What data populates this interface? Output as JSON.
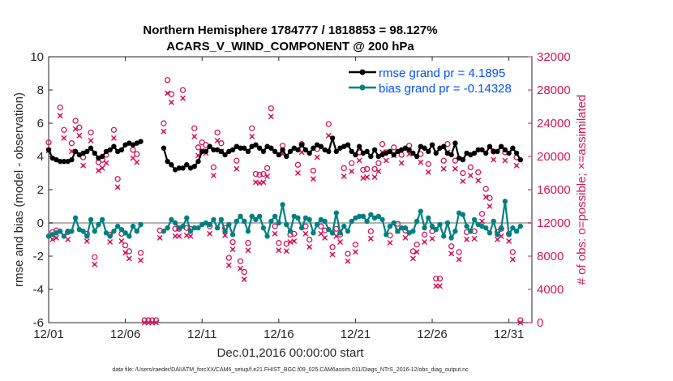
{
  "chart_data": {
    "type": "line",
    "title_line1": "Northern Hemisphere 1784777 / 1818853 = 98.127%",
    "title_line2": "ACARS_V_WIND_COMPONENT @ 200 hPa",
    "xlabel": "Dec.01,2016 00:00:00 start",
    "ylabel_left": "rmse and bias (model - observation)",
    "ylabel_right": "# of obs: o=possible; ×=assimilated",
    "footer": "data file: /Users/raeder/DAI/ATM_forcXX/CAM6_setup/f.e21.FHIST_BGC.f09_025.CAM6assim.011/Diags_NTrS_2016-12/obs_diag_output.nc",
    "xlim": [
      1,
      32.5
    ],
    "ylim_left": [
      -6,
      10
    ],
    "ylim_right": [
      0,
      32000
    ],
    "x_ticks": [
      {
        "value": 1,
        "label": "12/01"
      },
      {
        "value": 6,
        "label": "12/06"
      },
      {
        "value": 11,
        "label": "12/11"
      },
      {
        "value": 16,
        "label": "12/16"
      },
      {
        "value": 21,
        "label": "12/21"
      },
      {
        "value": 26,
        "label": "12/26"
      },
      {
        "value": 31,
        "label": "12/31"
      }
    ],
    "y_ticks_left": [
      "-6",
      "-4",
      "-2",
      "0",
      "2",
      "4",
      "6",
      "8",
      "10"
    ],
    "y_ticks_right": [
      "0",
      "4000",
      "8000",
      "12000",
      "16000",
      "20000",
      "24000",
      "28000",
      "32000"
    ],
    "legend": {
      "rmse_label": "rmse grand pr = 4.1895",
      "bias_label": "bias grand pr = -0.14328"
    },
    "colors": {
      "rmse": "#000000",
      "bias": "#008080",
      "obs": "#d6155b",
      "zero_line": "#b3b3b3",
      "legend_text": "#0050ff"
    },
    "x": [
      1.0,
      1.25,
      1.5,
      1.75,
      2.0,
      2.25,
      2.5,
      2.75,
      3.0,
      3.25,
      3.5,
      3.75,
      4.0,
      4.25,
      4.5,
      4.75,
      5.0,
      5.25,
      5.5,
      5.75,
      6.0,
      6.25,
      6.5,
      6.75,
      7.0,
      7.25,
      7.5,
      7.75,
      8.0,
      8.25,
      8.5,
      8.75,
      9.0,
      9.25,
      9.5,
      9.75,
      10.0,
      10.25,
      10.5,
      10.75,
      11.0,
      11.25,
      11.5,
      11.75,
      12.0,
      12.25,
      12.5,
      12.75,
      13.0,
      13.25,
      13.5,
      13.75,
      14.0,
      14.25,
      14.5,
      14.75,
      15.0,
      15.25,
      15.5,
      15.75,
      16.0,
      16.25,
      16.5,
      16.75,
      17.0,
      17.25,
      17.5,
      17.75,
      18.0,
      18.25,
      18.5,
      18.75,
      19.0,
      19.25,
      19.5,
      19.75,
      20.0,
      20.25,
      20.5,
      20.75,
      21.0,
      21.25,
      21.5,
      21.75,
      22.0,
      22.25,
      22.5,
      22.75,
      23.0,
      23.25,
      23.5,
      23.75,
      24.0,
      24.25,
      24.5,
      24.75,
      25.0,
      25.25,
      25.5,
      25.75,
      26.0,
      26.25,
      26.5,
      26.75,
      27.0,
      27.25,
      27.5,
      27.75,
      28.0,
      28.25,
      28.5,
      28.75,
      29.0,
      29.25,
      29.5,
      29.75,
      30.0,
      30.25,
      30.5,
      30.75,
      31.0,
      31.25,
      31.5,
      31.75
    ],
    "series": [
      {
        "name": "rmse",
        "values": [
          4.4,
          3.9,
          3.8,
          3.7,
          3.7,
          3.7,
          3.8,
          4.3,
          4.1,
          4.2,
          4.3,
          4.5,
          4.2,
          3.9,
          4.0,
          4.3,
          4.4,
          4.6,
          4.3,
          4.4,
          4.7,
          4.8,
          4.7,
          4.8,
          4.9,
          null,
          null,
          null,
          null,
          null,
          4.5,
          3.7,
          3.5,
          3.2,
          3.3,
          3.3,
          3.5,
          3.3,
          3.4,
          3.7,
          4.3,
          4.3,
          4.6,
          4.4,
          4.4,
          4.3,
          4.1,
          4.3,
          4.4,
          4.6,
          4.5,
          4.5,
          4.3,
          4.6,
          4.7,
          4.5,
          4.3,
          4.6,
          4.5,
          4.3,
          4.1,
          4.4,
          4.0,
          4.3,
          4.5,
          4.4,
          4.7,
          4.4,
          4.2,
          4.5,
          4.7,
          4.6,
          4.4,
          4.3,
          5.1,
          4.3,
          4.5,
          4.6,
          4.7,
          4.3,
          4.1,
          4.6,
          4.2,
          4.3,
          4.0,
          4.4,
          4.0,
          4.1,
          4.2,
          4.3,
          4.1,
          4.3,
          4.4,
          4.5,
          4.4,
          4.2,
          4.0,
          4.6,
          4.5,
          4.3,
          4.7,
          4.2,
          4.5,
          4.6,
          4.2,
          4.1,
          4.8,
          3.9,
          3.8,
          4.2,
          4.1,
          4.2,
          4.4,
          4.4,
          4.2,
          4.6,
          4.3,
          4.3,
          4.6,
          4.4,
          4.2,
          4.5,
          4.2,
          3.8
        ]
      },
      {
        "name": "bias",
        "values": [
          -0.8,
          -0.7,
          -0.6,
          -0.5,
          -0.8,
          -0.5,
          -0.5,
          0.3,
          -0.4,
          -0.5,
          -0.8,
          0.2,
          -0.5,
          -0.1,
          0.2,
          -0.6,
          -0.8,
          -0.5,
          -0.2,
          -0.4,
          -0.6,
          -0.8,
          -0.2,
          -0.5,
          -0.1,
          null,
          null,
          null,
          null,
          null,
          -0.5,
          -0.3,
          0.2,
          0.0,
          -0.3,
          -0.2,
          0.3,
          -0.5,
          -0.3,
          -0.3,
          -0.1,
          0.0,
          -0.1,
          0.2,
          -0.3,
          0.2,
          -0.5,
          -0.1,
          -0.7,
          0.1,
          0.4,
          0.1,
          -0.5,
          0.4,
          0.2,
          0.4,
          -0.3,
          -0.8,
          0.1,
          0.4,
          0.0,
          1.1,
          -0.1,
          -0.5,
          0.4,
          0.3,
          -0.3,
          0.3,
          0.2,
          -0.6,
          -0.1,
          0.2,
          0.1,
          -0.4,
          -0.6,
          0.6,
          -0.6,
          -0.2,
          -0.5,
          0.1,
          0.3,
          0.4,
          0.4,
          0.1,
          0.5,
          0.3,
          0.4,
          0.2,
          -0.7,
          -0.2,
          0.0,
          -0.5,
          -0.3,
          -0.3,
          -0.6,
          -0.5,
          0.1,
          0.7,
          -0.3,
          0.3,
          -0.2,
          -0.4,
          -0.1,
          -0.8,
          0.0,
          -0.9,
          -0.5,
          0.6,
          0.5,
          -0.2,
          -0.5,
          0.2,
          -0.1,
          -0.2,
          -0.3,
          -0.6,
          0.1,
          -0.7,
          -0.3,
          1.3,
          -0.7,
          -0.3,
          -0.5,
          -0.2
        ]
      },
      {
        "name": "obs_possible",
        "values": [
          21400,
          10600,
          10800,
          25600,
          22900,
          10600,
          21300,
          24000,
          23200,
          19600,
          10400,
          22600,
          7600,
          19000,
          19300,
          19900,
          10300,
          22900,
          17000,
          10400,
          9000,
          8300,
          20500,
          20000,
          8100,
          0,
          0,
          0,
          0,
          10800,
          23700,
          28900,
          27200,
          11000,
          11000,
          27700,
          11100,
          11000,
          23100,
          20800,
          21400,
          21100,
          11300,
          18400,
          22600,
          21300,
          11100,
          7500,
          9400,
          19200,
          7100,
          5800,
          9300,
          23100,
          17600,
          17500,
          17600,
          18300,
          25500,
          11300,
          9300,
          21000,
          9200,
          10300,
          10400,
          18700,
          21200,
          11300,
          9700,
          18000,
          20600,
          11300,
          10800,
          23600,
          8800,
          11000,
          10300,
          18300,
          8000,
          18900,
          9100,
          20200,
          18100,
          18200,
          10700,
          18200,
          18900,
          21200,
          20200,
          10200,
          20800,
          11600,
          19900,
          10800,
          21000,
          8300,
          9100,
          20000,
          10300,
          18800,
          10700,
          5000,
          5000,
          19200,
          21200,
          8900,
          19200,
          8200,
          17700,
          10600,
          18400,
          10700,
          17800,
          12800,
          15800,
          14700,
          20300,
          10600,
          11000,
          20200,
          10400,
          8200,
          19600,
          0
        ]
      },
      {
        "name": "obs_assimilated",
        "values": [
          21000,
          10300,
          10500,
          25200,
          22500,
          10300,
          20900,
          23600,
          22800,
          19200,
          10100,
          22200,
          7300,
          18600,
          18900,
          19500,
          10000,
          22500,
          16600,
          10100,
          8700,
          8000,
          20100,
          19600,
          7800,
          0,
          0,
          0,
          0,
          10500,
          23300,
          27900,
          26800,
          10700,
          10700,
          27300,
          10800,
          10700,
          22700,
          20400,
          21000,
          20700,
          11000,
          18000,
          22200,
          20900,
          10800,
          7200,
          9100,
          18800,
          6800,
          5500,
          9000,
          22700,
          17200,
          17100,
          17200,
          17900,
          25100,
          11000,
          9000,
          20600,
          8900,
          10000,
          10100,
          18300,
          20800,
          11000,
          9400,
          17600,
          20200,
          11000,
          10500,
          22800,
          8500,
          10700,
          10000,
          17900,
          7700,
          18500,
          8800,
          19800,
          17700,
          17800,
          10400,
          17800,
          18500,
          20800,
          19800,
          9900,
          20400,
          11300,
          19500,
          10500,
          20600,
          8000,
          8800,
          19600,
          10000,
          18400,
          10400,
          4700,
          4700,
          18800,
          20800,
          8600,
          18800,
          7900,
          17300,
          10300,
          18000,
          10400,
          17400,
          12500,
          15400,
          14300,
          19900,
          10300,
          10700,
          19800,
          10100,
          7900,
          19200,
          0
        ]
      }
    ]
  }
}
